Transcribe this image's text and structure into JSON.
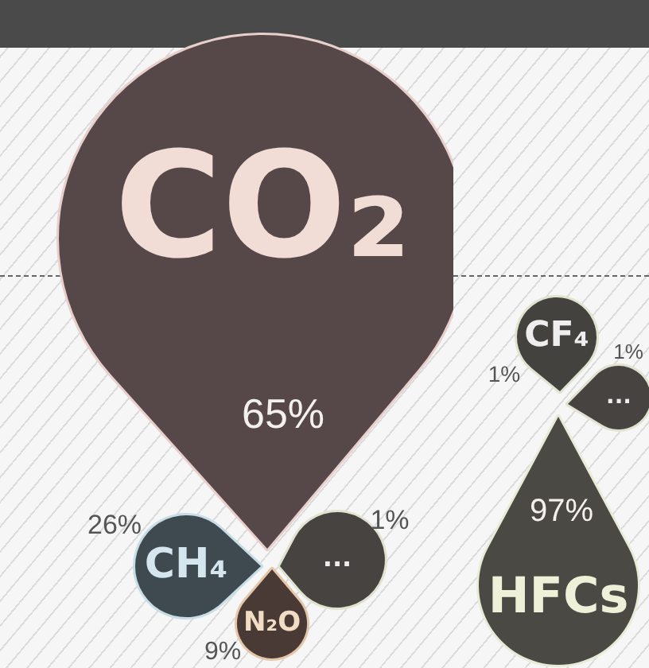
{
  "chart_data": [
    {
      "type": "other",
      "categories": [
        "CO₂",
        "CH₄",
        "N₂O",
        "..."
      ],
      "values": [
        65,
        26,
        9,
        1
      ],
      "value_labels": [
        "65%",
        "26%",
        "9%",
        "1%"
      ],
      "colors": [
        "#564849",
        "#3f4a50",
        "#4a3a35",
        "#474340"
      ]
    },
    {
      "type": "other",
      "categories": [
        "CF₄",
        "...",
        "HFCs"
      ],
      "values": [
        1,
        1,
        97
      ],
      "value_labels": [
        "1%",
        "1%",
        "97%"
      ],
      "colors": [
        "#44423f",
        "#474340",
        "#4a4944"
      ]
    }
  ]
}
